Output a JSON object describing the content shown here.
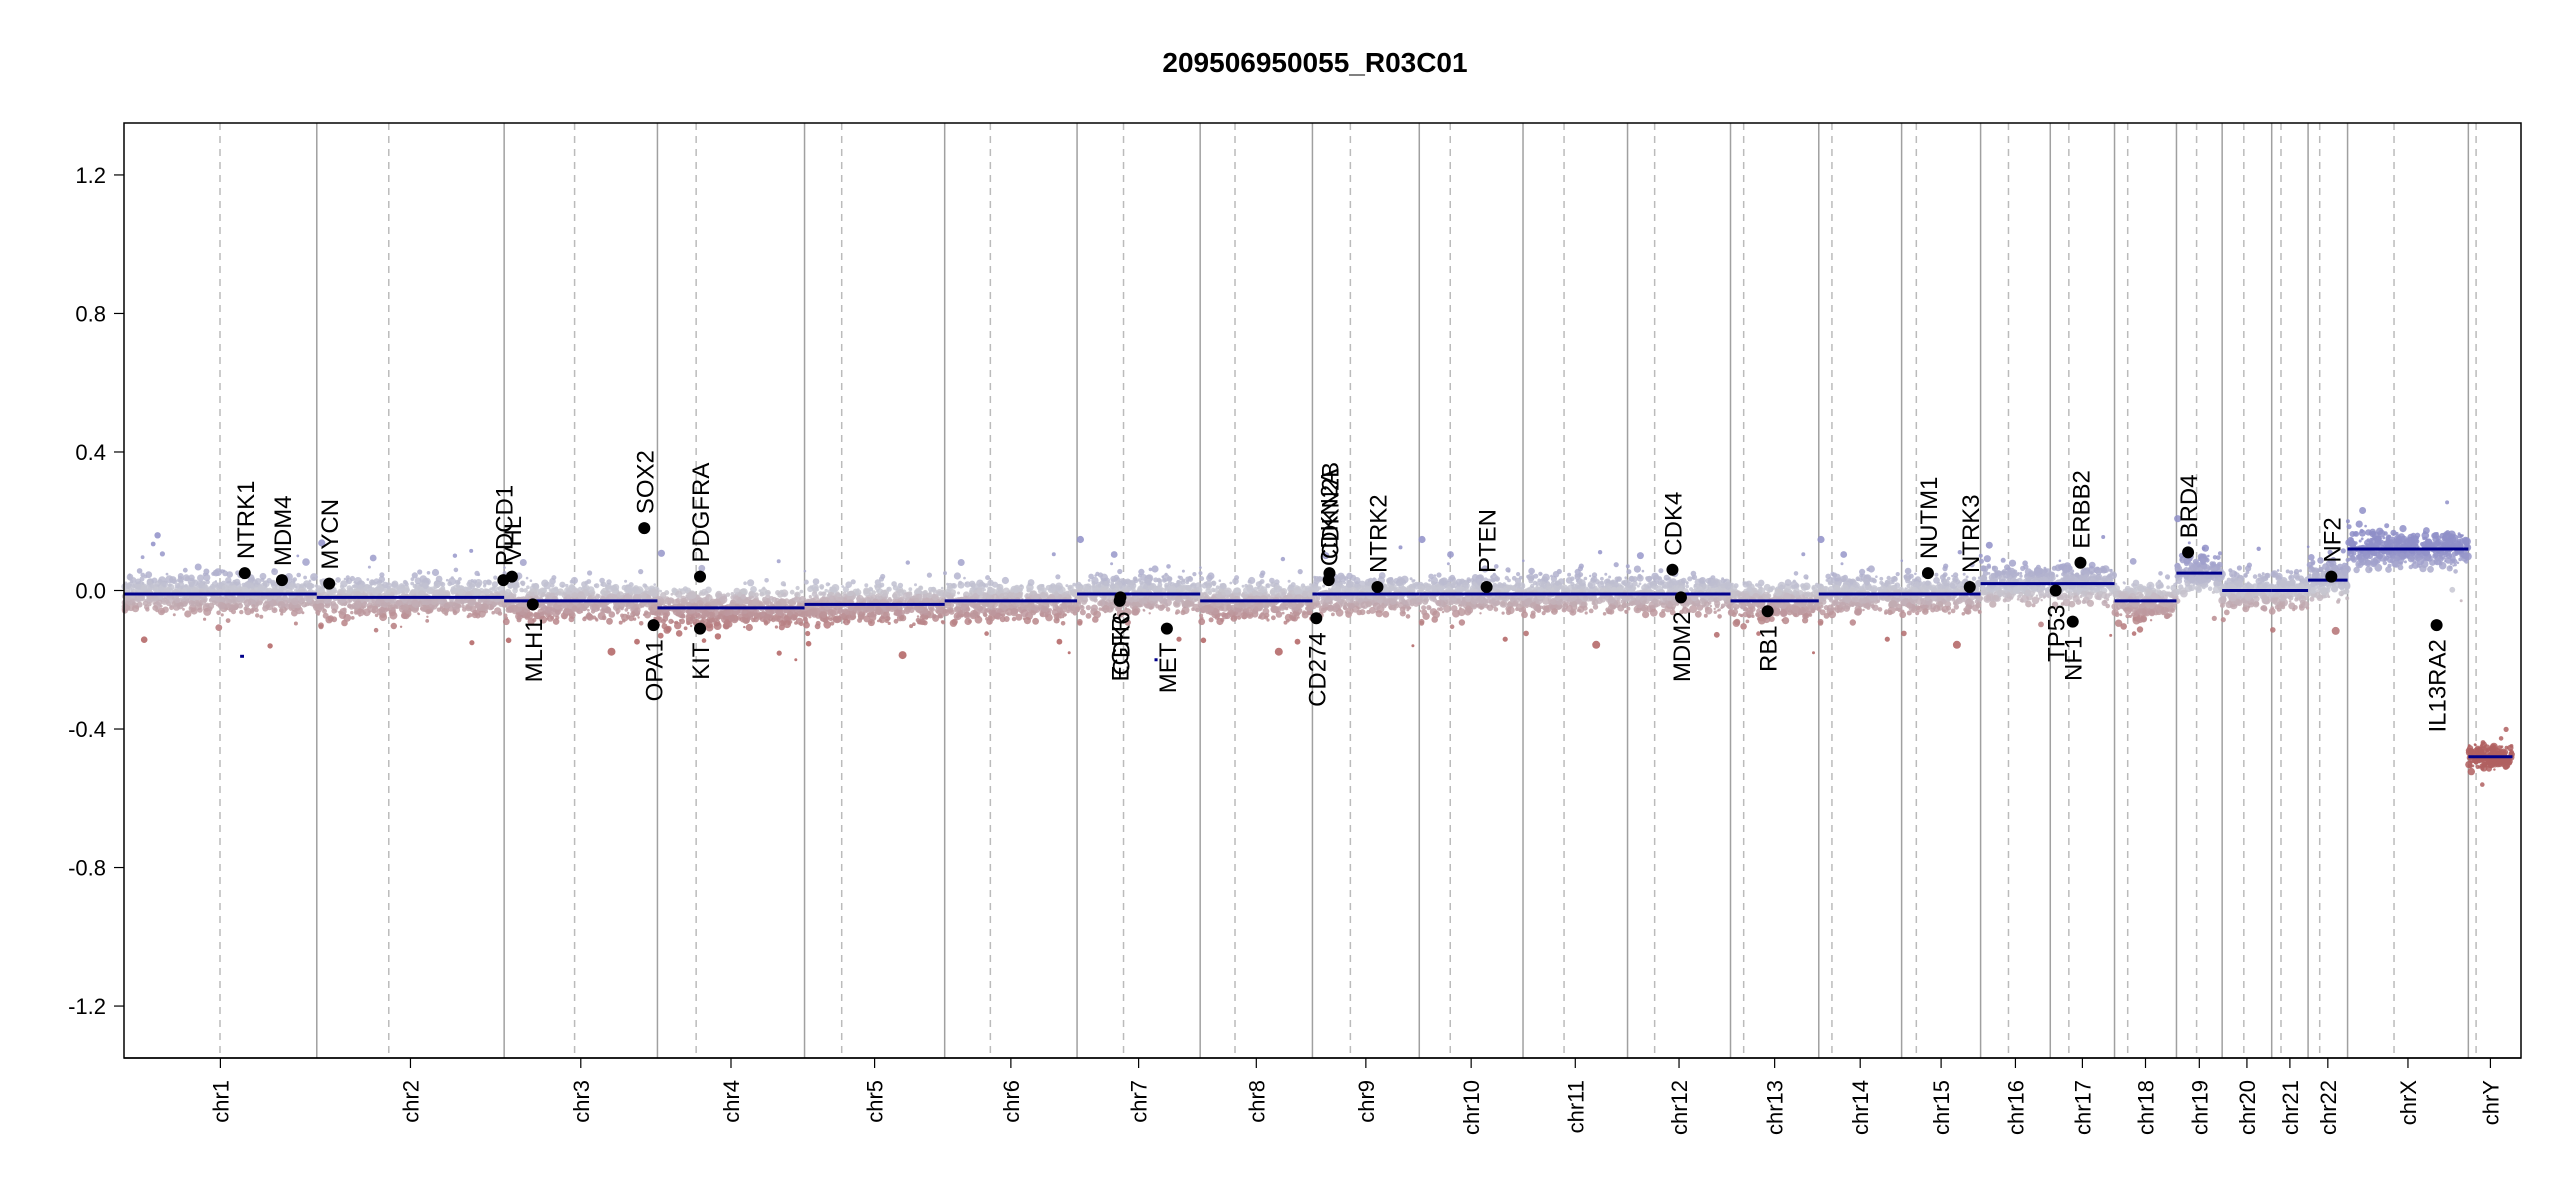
{
  "chart_data": {
    "type": "scatter",
    "title": "209506950055_R03C01",
    "ylim": [
      -1.35,
      1.35
    ],
    "yticks": [
      -1.2,
      -0.8,
      -0.4,
      0.0,
      0.4,
      0.8,
      1.2
    ],
    "ytick_labels": [
      "-1.2",
      "-0.8",
      "-0.4",
      "0.0",
      "0.4",
      "0.8",
      "1.2"
    ],
    "genome_length_mb": 3096,
    "chromosomes": [
      {
        "name": "chr1",
        "label": "chr1",
        "length": 249,
        "centromere": 124
      },
      {
        "name": "chr2",
        "label": "chr2",
        "length": 242,
        "centromere": 93
      },
      {
        "name": "chr3",
        "label": "chr3",
        "length": 198,
        "centromere": 91
      },
      {
        "name": "chr4",
        "label": "chr4",
        "length": 190,
        "centromere": 50
      },
      {
        "name": "chr5",
        "label": "chr5",
        "length": 181,
        "centromere": 48
      },
      {
        "name": "chr6",
        "label": "chr6",
        "length": 171,
        "centromere": 59
      },
      {
        "name": "chr7",
        "label": "chr7",
        "length": 159,
        "centromere": 60
      },
      {
        "name": "chr8",
        "label": "chr8",
        "length": 145,
        "centromere": 45
      },
      {
        "name": "chr9",
        "label": "chr9",
        "length": 138,
        "centromere": 49
      },
      {
        "name": "chr10",
        "label": "chr10",
        "length": 134,
        "centromere": 40
      },
      {
        "name": "chr11",
        "label": "chr11",
        "length": 135,
        "centromere": 53
      },
      {
        "name": "chr12",
        "label": "chr12",
        "length": 133,
        "centromere": 35
      },
      {
        "name": "chr13",
        "label": "chr13",
        "length": 114,
        "centromere": 17
      },
      {
        "name": "chr14",
        "label": "chr14",
        "length": 107,
        "centromere": 17
      },
      {
        "name": "chr15",
        "label": "chr15",
        "length": 102,
        "centromere": 19
      },
      {
        "name": "chr16",
        "label": "chr16",
        "length": 90,
        "centromere": 36
      },
      {
        "name": "chr17",
        "label": "chr17",
        "length": 83,
        "centromere": 24
      },
      {
        "name": "chr18",
        "label": "chr18",
        "length": 80,
        "centromere": 17
      },
      {
        "name": "chr19",
        "label": "chr19",
        "length": 59,
        "centromere": 26
      },
      {
        "name": "chr20",
        "label": "chr20",
        "length": 64,
        "centromere": 28
      },
      {
        "name": "chr21",
        "label": "chr21",
        "length": 47,
        "centromere": 12
      },
      {
        "name": "chr22",
        "label": "chr22",
        "length": 51,
        "centromere": 15
      },
      {
        "name": "chrX",
        "label": "chrX",
        "length": 156,
        "centromere": 60
      },
      {
        "name": "chrY",
        "label": "chrY",
        "length": 57,
        "centromere": 10
      }
    ],
    "segments": [
      {
        "chr": "chr1",
        "start": 0,
        "end": 249,
        "value": -0.01
      },
      {
        "chr": "chr2",
        "start": 0,
        "end": 242,
        "value": -0.02
      },
      {
        "chr": "chr3",
        "start": 0,
        "end": 198,
        "value": -0.03
      },
      {
        "chr": "chr4",
        "start": 0,
        "end": 190,
        "value": -0.05
      },
      {
        "chr": "chr5",
        "start": 0,
        "end": 181,
        "value": -0.04
      },
      {
        "chr": "chr6",
        "start": 0,
        "end": 171,
        "value": -0.03
      },
      {
        "chr": "chr7",
        "start": 0,
        "end": 159,
        "value": -0.01
      },
      {
        "chr": "chr8",
        "start": 0,
        "end": 145,
        "value": -0.03
      },
      {
        "chr": "chr9",
        "start": 0,
        "end": 138,
        "value": -0.01
      },
      {
        "chr": "chr10",
        "start": 0,
        "end": 134,
        "value": -0.01
      },
      {
        "chr": "chr11",
        "start": 0,
        "end": 135,
        "value": -0.01
      },
      {
        "chr": "chr12",
        "start": 0,
        "end": 133,
        "value": -0.01
      },
      {
        "chr": "chr13",
        "start": 0,
        "end": 114,
        "value": -0.03
      },
      {
        "chr": "chr14",
        "start": 0,
        "end": 107,
        "value": -0.01
      },
      {
        "chr": "chr15",
        "start": 0,
        "end": 102,
        "value": -0.01
      },
      {
        "chr": "chr16",
        "start": 0,
        "end": 90,
        "value": 0.02
      },
      {
        "chr": "chr17",
        "start": 0,
        "end": 83,
        "value": 0.02
      },
      {
        "chr": "chr18",
        "start": 0,
        "end": 80,
        "value": -0.03
      },
      {
        "chr": "chr19",
        "start": 0,
        "end": 59,
        "value": 0.05
      },
      {
        "chr": "chr20",
        "start": 0,
        "end": 64,
        "value": 0.0
      },
      {
        "chr": "chr21",
        "start": 0,
        "end": 47,
        "value": 0.0
      },
      {
        "chr": "chr22",
        "start": 0,
        "end": 51,
        "value": 0.03
      },
      {
        "chr": "chrX",
        "start": 0,
        "end": 156,
        "value": 0.12
      },
      {
        "chr": "chrY",
        "start": 0,
        "end": 57,
        "value": -0.48
      },
      {
        "chr": "chr1",
        "start": 150,
        "end": 155,
        "value": -0.19
      },
      {
        "chr": "chr7",
        "start": 100,
        "end": 104,
        "value": -0.2
      }
    ],
    "genes": [
      {
        "name": "NTRK1",
        "chr": "chr1",
        "pos": 156,
        "value": 0.05,
        "label_dir": "up"
      },
      {
        "name": "MDM4",
        "chr": "chr1",
        "pos": 204,
        "value": 0.03,
        "label_dir": "up"
      },
      {
        "name": "MYCN",
        "chr": "chr2",
        "pos": 16,
        "value": 0.02,
        "label_dir": "up"
      },
      {
        "name": "PDCD1",
        "chr": "chr2",
        "pos": 241,
        "value": 0.03,
        "label_dir": "up"
      },
      {
        "name": "VHL",
        "chr": "chr3",
        "pos": 10,
        "value": 0.04,
        "label_dir": "up"
      },
      {
        "name": "MLH1",
        "chr": "chr3",
        "pos": 37,
        "value": -0.04,
        "label_dir": "down"
      },
      {
        "name": "SOX2",
        "chr": "chr3",
        "pos": 181,
        "value": 0.18,
        "label_dir": "up"
      },
      {
        "name": "OPA1",
        "chr": "chr3",
        "pos": 193,
        "value": -0.1,
        "label_dir": "down"
      },
      {
        "name": "PDGFRA",
        "chr": "chr4",
        "pos": 55,
        "value": 0.04,
        "label_dir": "up"
      },
      {
        "name": "KIT",
        "chr": "chr4",
        "pos": 55,
        "value": -0.11,
        "label_dir": "down"
      },
      {
        "name": "EGFR",
        "chr": "chr7",
        "pos": 55,
        "value": -0.03,
        "label_dir": "down"
      },
      {
        "name": "CDK6",
        "chr": "chr7",
        "pos": 56,
        "value": -0.02,
        "label_dir": "down"
      },
      {
        "name": "MET",
        "chr": "chr7",
        "pos": 116,
        "value": -0.11,
        "label_dir": "down"
      },
      {
        "name": "CD274",
        "chr": "chr9",
        "pos": 5,
        "value": -0.08,
        "label_dir": "down"
      },
      {
        "name": "CDKN2A",
        "chr": "chr9",
        "pos": 21,
        "value": 0.03,
        "label_dir": "up"
      },
      {
        "name": "CDKN2B",
        "chr": "chr9",
        "pos": 22,
        "value": 0.05,
        "label_dir": "up"
      },
      {
        "name": "NTRK2",
        "chr": "chr9",
        "pos": 84,
        "value": 0.01,
        "label_dir": "up"
      },
      {
        "name": "PTEN",
        "chr": "chr10",
        "pos": 87,
        "value": 0.01,
        "label_dir": "up"
      },
      {
        "name": "CDK4",
        "chr": "chr12",
        "pos": 58,
        "value": 0.06,
        "label_dir": "up"
      },
      {
        "name": "MDM2",
        "chr": "chr12",
        "pos": 69,
        "value": -0.02,
        "label_dir": "down"
      },
      {
        "name": "RB1",
        "chr": "chr13",
        "pos": 48,
        "value": -0.06,
        "label_dir": "down"
      },
      {
        "name": "NUTM1",
        "chr": "chr15",
        "pos": 34,
        "value": 0.05,
        "label_dir": "up"
      },
      {
        "name": "NTRK3",
        "chr": "chr15",
        "pos": 88,
        "value": 0.01,
        "label_dir": "up"
      },
      {
        "name": "TP53",
        "chr": "chr17",
        "pos": 7,
        "value": 0.0,
        "label_dir": "down"
      },
      {
        "name": "NF1",
        "chr": "chr17",
        "pos": 29,
        "value": -0.09,
        "label_dir": "down"
      },
      {
        "name": "ERBB2",
        "chr": "chr17",
        "pos": 39,
        "value": 0.08,
        "label_dir": "up"
      },
      {
        "name": "BRD4",
        "chr": "chr19",
        "pos": 15,
        "value": 0.11,
        "label_dir": "up"
      },
      {
        "name": "NF2",
        "chr": "chr22",
        "pos": 30,
        "value": 0.04,
        "label_dir": "up"
      },
      {
        "name": "IL13RA2",
        "chr": "chrX",
        "pos": 115,
        "value": -0.1,
        "label_dir": "down"
      }
    ],
    "colors": {
      "segment": "#00008b",
      "gain_points": "#8f8fc8",
      "neutral_points": "#c8c8d2",
      "loss_points": "#b06060",
      "gene_marker": "#000000",
      "chromosome_boundary": "#a0a0a0",
      "centromere_line": "#bbbbbb"
    }
  }
}
